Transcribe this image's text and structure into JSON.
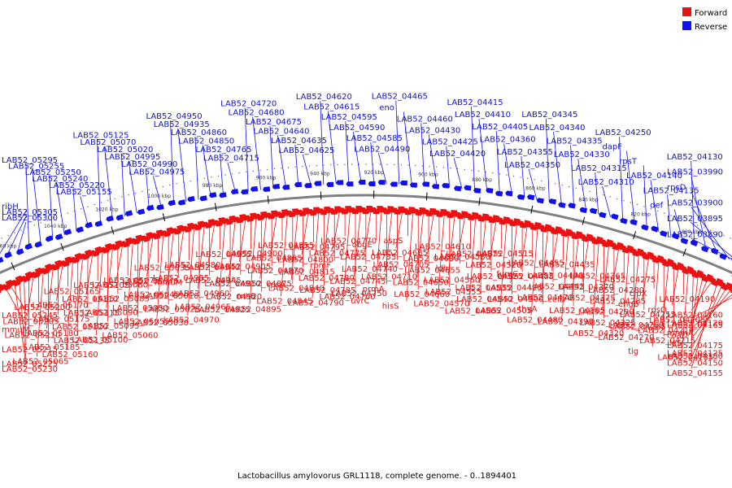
{
  "caption": "Lactobacillus amylovorus GRL1118, complete genome. - 0..1894401",
  "legend": [
    {
      "label": "Forward",
      "color": "#ee1111"
    },
    {
      "label": "Reverse",
      "color": "#1111ee"
    }
  ],
  "colors": {
    "forward": "#ee1111",
    "reverse": "#1111ee",
    "backbone": "#808080"
  },
  "ticks": [
    "780 kbp",
    "800 kbp",
    "820 kbp",
    "840 kbp",
    "860 kbp",
    "880 kbp",
    "900 kbp",
    "920 kbp",
    "940 kbp",
    "960 kbp",
    "980 kbp",
    "1000 kbp",
    "1020 kbp",
    "1040 kbp",
    "1060 kbp"
  ],
  "reverse_labels": [
    "LAB52_03890",
    "LAB52_03895",
    "LAB52_03900",
    "rpsD",
    "LAB52_03990",
    "LAB52_04130",
    "def",
    "LAB52_04135",
    "LAB52_04140",
    "rpsT",
    "dapF",
    "LAB52_04250",
    "LAB52_04310",
    "LAB52_04315",
    "LAB52_04330",
    "LAB52_04335",
    "LAB52_04340",
    "LAB52_04345",
    "LAB52_04350",
    "LAB52_04355",
    "LAB52_04360",
    "LAB52_04405",
    "LAB52_04410",
    "LAB52_04415",
    "LAB52_04420",
    "LAB52_04425",
    "LAB52_04430",
    "LAB52_04460",
    "eno",
    "LAB52_04465",
    "LAB52_04490",
    "LAB52_04585",
    "LAB52_04590",
    "LAB52_04595",
    "LAB52_04615",
    "LAB52_04620",
    "LAB52_04625",
    "LAB52_04635",
    "LAB52_04640",
    "LAB52_04675",
    "LAB52_04680",
    "LAB52_04720",
    "LAB52_04715",
    "LAB52_04765",
    "LAB52_04850",
    "LAB52_04860",
    "LAB52_04935",
    "LAB52_04950",
    "LAB52_04975",
    "LAB52_04990",
    "LAB52_04995",
    "LAB52_05020",
    "LAB52_05070",
    "LAB52_05125",
    "LAB52_05155",
    "LAB52_05220",
    "LAB52_05240",
    "LAB52_05250",
    "LAB52_05255",
    "LAB52_05295",
    "LAB52_05300",
    "LAB52_05305",
    "ribH"
  ],
  "forward_labels": [
    "LAB52_04120",
    "mnmA",
    "ileS",
    "LAB52_04125",
    "LAB52_04150",
    "LAB52_04155",
    "LAB52_04160",
    "LAB52_04165",
    "coaD",
    "LAB52_04175",
    "LAB52_04180",
    "LAB52_04185",
    "LAB52_04190",
    "rpsO",
    "LAB52_04205",
    "LAB52_04210",
    "LAB52_04215",
    "tig",
    "clpX",
    "engB",
    "LAB52_04255",
    "LAB52_04260",
    "LAB52_04265",
    "LAB52_04270",
    "LAB52_04275",
    "LAB52_04280",
    "LAB52_04285",
    "LAB52_04290",
    "LAB52_04325",
    "LAB52_04320",
    "LAB52_04365",
    "LAB52_04370",
    "LAB52_04375",
    "celD",
    "LAB52_04385",
    "LAB52_04390",
    "LAB52_04435",
    "LAB52_04440",
    "LAB52_04445",
    "LAB52_04470",
    "thyA",
    "LAB52_04480",
    "LAB52_04455",
    "fumC",
    "LAB52_04485",
    "LAB52_04495",
    "LAB52_04500",
    "LAB52_04505",
    "LAB52_04515",
    "LAB52_04520",
    "LAB52_04525",
    "LAB52_04535",
    "LAB52_04540",
    "LAB52_04565",
    "LAB52_04575",
    "LAB52_04580",
    "ldh",
    "LAB52_04560",
    "LAB52_04555",
    "LAB52_04570",
    "LAB52_04610",
    "LAB52_04630",
    "LAB52_04655",
    "LAB52_04650",
    "LAB52_04660",
    "hisS",
    "aspS",
    "LAB52_04685",
    "LAB52_04705",
    "LAB52_04710",
    "prmA",
    "uvrC",
    "obgE",
    "LAB52_04735",
    "LAB52_04740",
    "LAB52_04745",
    "LAB52_04750",
    "LAB52_04760",
    "LAB52_04770",
    "LAB52_04775",
    "rpmF",
    "LAB52_04780",
    "LAB52_04785",
    "LAB52_04790",
    "LAB52_04795",
    "LAB52_04800",
    "LAB52_04815",
    "rpsA",
    "LAB52_04840",
    "LAB52_04845",
    "LAB52_04855",
    "LAB52_04865",
    "LAB52_04870",
    "LAB52_04875",
    "rnhB",
    "LAB52_04895",
    "LAB52_04900",
    "LAB52_04905",
    "hslU",
    "LAB52_04910",
    "LAB52_04920",
    "LAB52_04925",
    "LAB52_04955",
    "LAB52_04940",
    "LAB52_04945",
    "LAB52_04960",
    "LAB52_04965",
    "LAB52_04970",
    "LAB52_04980",
    "LAB52_04985",
    "mmuM",
    "LAB52_05010",
    "LAB52_05025",
    "LAB52_05030",
    "LAB52_05035",
    "LAB52_05040",
    "LAB52_05045",
    "LAB52_05050",
    "LAB52_05055",
    "LAB52_05060",
    "LAB52_05075",
    "LAB52_05080",
    "LAB52_05085",
    "LAB52_05090",
    "LAB52_05095",
    "LAB52_05100",
    "LAB52_05105",
    "LAB52_05110",
    "LAB52_05115",
    "LAB52_05120",
    "LAB52_05135",
    "LAB52_05160",
    "LAB52_05165",
    "LAB52_05170",
    "LAB52_05175",
    "LAB52_05180",
    "LAB52_05185",
    "LAB52_05065",
    "LAB52_05200",
    "LAB52_05205",
    "LAB52_05210",
    "LAB52_05215",
    "LAB52_05225",
    "LAB52_05230",
    "LAB52_05245",
    "mmuM"
  ]
}
